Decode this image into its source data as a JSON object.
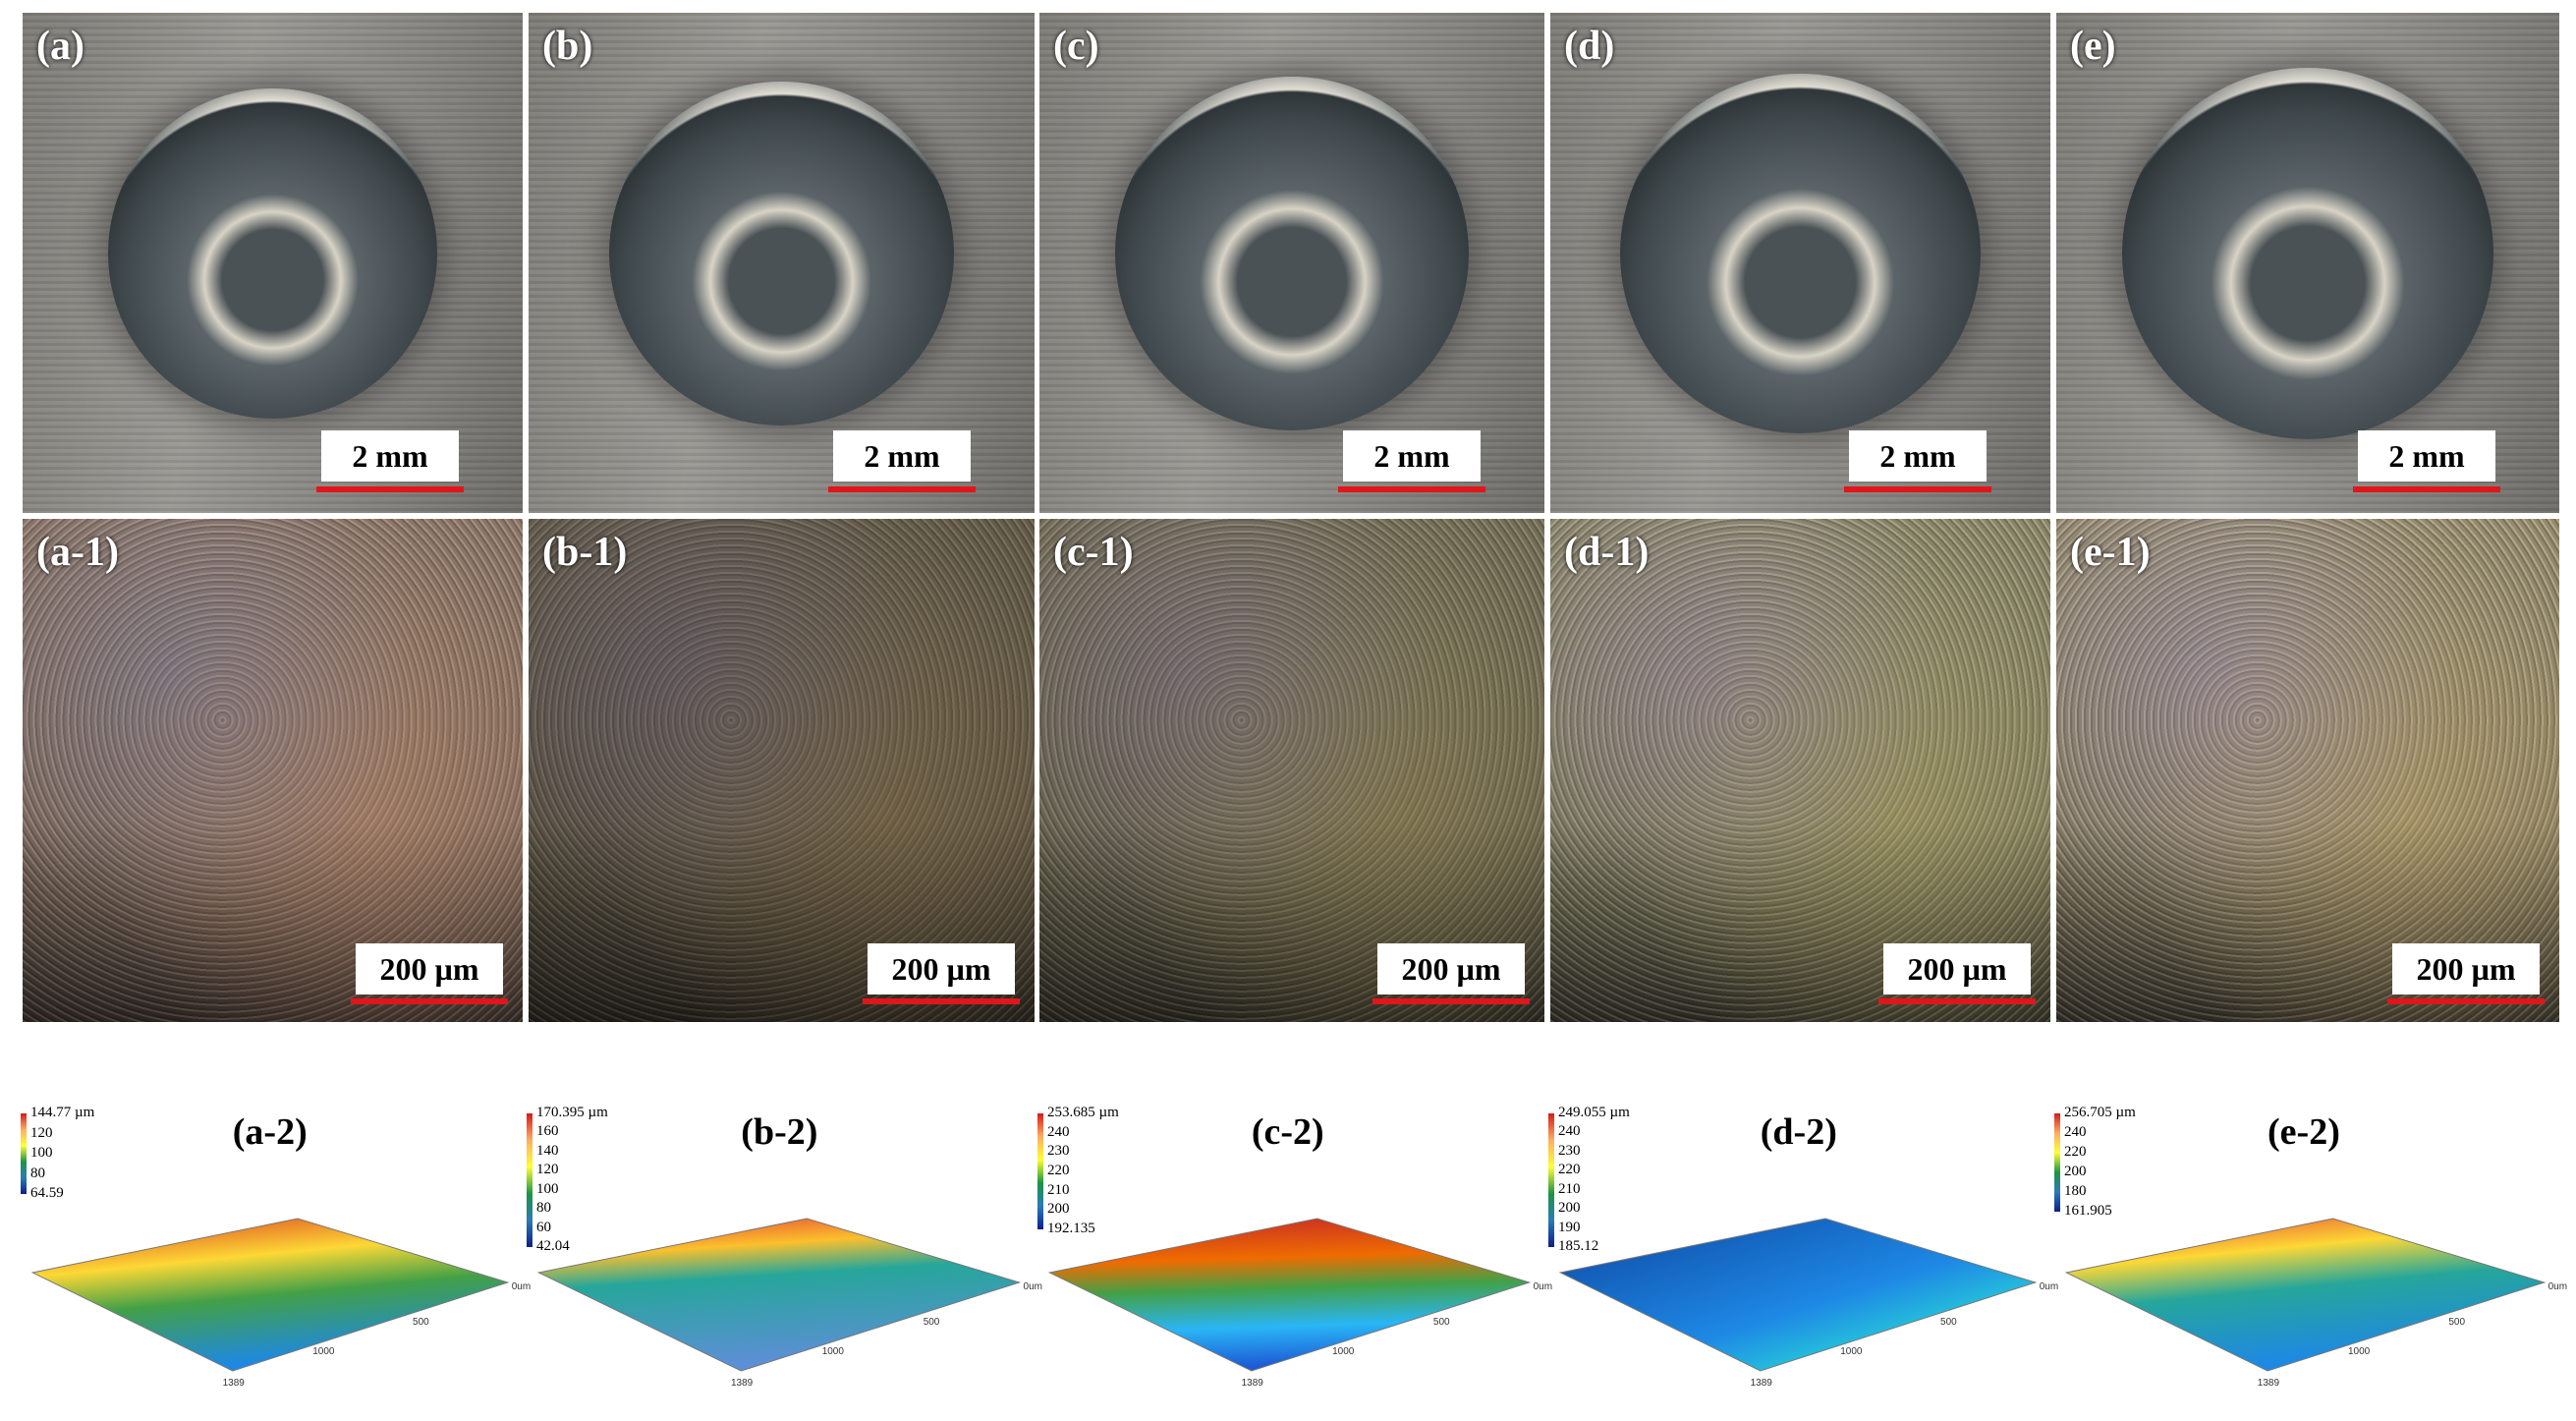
{
  "panels": [
    {
      "label": "(a)",
      "scale_bar": "2 mm"
    },
    {
      "label": "(b)",
      "scale_bar": "2 mm"
    },
    {
      "label": "(c)",
      "scale_bar": "2 mm"
    },
    {
      "label": "(d)",
      "scale_bar": "2 mm"
    },
    {
      "label": "(e)",
      "scale_bar": "2 mm"
    }
  ],
  "micro": [
    {
      "label": "(a-1)",
      "scale_bar": "200 µm"
    },
    {
      "label": "(b-1)",
      "scale_bar": "200 µm"
    },
    {
      "label": "(c-1)",
      "scale_bar": "200 µm"
    },
    {
      "label": "(d-1)",
      "scale_bar": "200 µm"
    },
    {
      "label": "(e-1)",
      "scale_bar": "200 µm"
    }
  ],
  "profiles": [
    {
      "label": "(a-2)",
      "colorbar": [
        "144.77 µm",
        "120",
        "100",
        "80",
        "64.59"
      ],
      "axis": [
        "0um",
        "500",
        "1000",
        "1389"
      ]
    },
    {
      "label": "(b-2)",
      "colorbar": [
        "170.395 µm",
        "160",
        "140",
        "120",
        "100",
        "80",
        "60",
        "42.04"
      ],
      "axis": [
        "0um",
        "500",
        "1000",
        "1389"
      ]
    },
    {
      "label": "(c-2)",
      "colorbar": [
        "253.685 µm",
        "240",
        "230",
        "220",
        "210",
        "200",
        "192.135"
      ],
      "axis": [
        "0um",
        "500",
        "1000",
        "1389"
      ]
    },
    {
      "label": "(d-2)",
      "colorbar": [
        "249.055 µm",
        "240",
        "230",
        "220",
        "210",
        "200",
        "190",
        "185.12"
      ],
      "axis": [
        "0um",
        "500",
        "1000",
        "1389"
      ]
    },
    {
      "label": "(e-2)",
      "colorbar": [
        "256.705 µm",
        "240",
        "220",
        "200",
        "180",
        "161.905"
      ],
      "axis": [
        "0um",
        "500",
        "1000",
        "1389"
      ]
    }
  ]
}
